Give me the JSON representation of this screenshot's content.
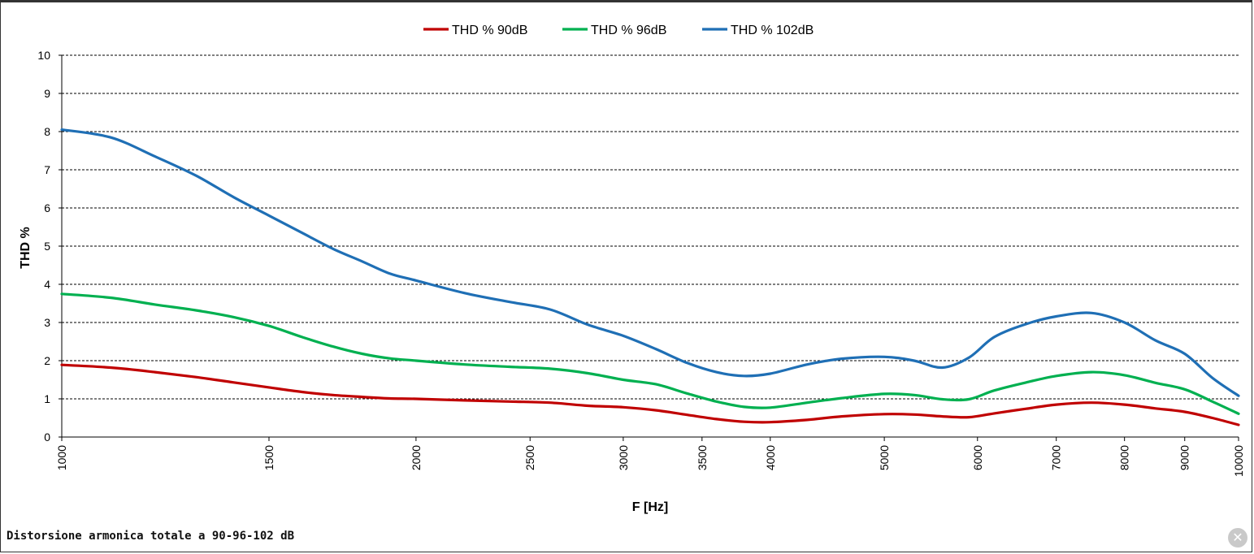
{
  "chart_data": {
    "type": "line",
    "xscale": "log",
    "xlim": [
      1000,
      10000
    ],
    "ylim": [
      0,
      10
    ],
    "yticks": [
      "0",
      "1",
      "2",
      "3",
      "4",
      "5",
      "6",
      "7",
      "8",
      "9",
      "10"
    ],
    "xticks": [
      "1000",
      "1500",
      "2000",
      "2500",
      "3000",
      "3500",
      "4000",
      "5000",
      "6000",
      "7000",
      "8000",
      "9000",
      "10000"
    ],
    "xlabel": "F [Hz]",
    "ylabel": "THD %",
    "grid": "horizontal dashed",
    "legend": "top-center",
    "series": [
      {
        "name": "THD % 90dB",
        "color": "#c00000",
        "points": [
          [
            1000,
            1.89
          ],
          [
            1100,
            1.82
          ],
          [
            1200,
            1.7
          ],
          [
            1300,
            1.57
          ],
          [
            1400,
            1.43
          ],
          [
            1500,
            1.3
          ],
          [
            1600,
            1.18
          ],
          [
            1700,
            1.1
          ],
          [
            1800,
            1.05
          ],
          [
            1900,
            1.01
          ],
          [
            2000,
            1.0
          ],
          [
            2200,
            0.96
          ],
          [
            2400,
            0.93
          ],
          [
            2600,
            0.9
          ],
          [
            2800,
            0.82
          ],
          [
            3000,
            0.78
          ],
          [
            3200,
            0.7
          ],
          [
            3400,
            0.58
          ],
          [
            3600,
            0.47
          ],
          [
            3800,
            0.4
          ],
          [
            4000,
            0.39
          ],
          [
            4300,
            0.45
          ],
          [
            4600,
            0.54
          ],
          [
            5000,
            0.6
          ],
          [
            5300,
            0.59
          ],
          [
            5600,
            0.54
          ],
          [
            5900,
            0.52
          ],
          [
            6200,
            0.62
          ],
          [
            6600,
            0.74
          ],
          [
            7000,
            0.85
          ],
          [
            7500,
            0.9
          ],
          [
            8000,
            0.85
          ],
          [
            8500,
            0.75
          ],
          [
            9000,
            0.66
          ],
          [
            9500,
            0.5
          ],
          [
            10000,
            0.32
          ]
        ]
      },
      {
        "name": "THD % 96dB",
        "color": "#00b050",
        "points": [
          [
            1000,
            3.75
          ],
          [
            1100,
            3.65
          ],
          [
            1200,
            3.47
          ],
          [
            1300,
            3.32
          ],
          [
            1400,
            3.14
          ],
          [
            1500,
            2.91
          ],
          [
            1600,
            2.62
          ],
          [
            1700,
            2.37
          ],
          [
            1800,
            2.18
          ],
          [
            1900,
            2.06
          ],
          [
            2000,
            2.0
          ],
          [
            2200,
            1.9
          ],
          [
            2400,
            1.84
          ],
          [
            2600,
            1.79
          ],
          [
            2800,
            1.67
          ],
          [
            3000,
            1.5
          ],
          [
            3200,
            1.38
          ],
          [
            3400,
            1.14
          ],
          [
            3600,
            0.93
          ],
          [
            3800,
            0.79
          ],
          [
            4000,
            0.77
          ],
          [
            4300,
            0.9
          ],
          [
            4600,
            1.02
          ],
          [
            5000,
            1.13
          ],
          [
            5300,
            1.1
          ],
          [
            5600,
            0.99
          ],
          [
            5900,
            0.99
          ],
          [
            6200,
            1.22
          ],
          [
            6600,
            1.43
          ],
          [
            7000,
            1.6
          ],
          [
            7500,
            1.7
          ],
          [
            8000,
            1.62
          ],
          [
            8500,
            1.42
          ],
          [
            9000,
            1.25
          ],
          [
            9500,
            0.93
          ],
          [
            10000,
            0.61
          ]
        ]
      },
      {
        "name": "THD % 102dB",
        "color": "#1f6fb5",
        "points": [
          [
            1000,
            8.05
          ],
          [
            1100,
            7.85
          ],
          [
            1200,
            7.35
          ],
          [
            1300,
            6.85
          ],
          [
            1400,
            6.28
          ],
          [
            1500,
            5.8
          ],
          [
            1600,
            5.35
          ],
          [
            1700,
            4.93
          ],
          [
            1800,
            4.6
          ],
          [
            1900,
            4.28
          ],
          [
            2000,
            4.1
          ],
          [
            2200,
            3.77
          ],
          [
            2400,
            3.54
          ],
          [
            2600,
            3.34
          ],
          [
            2800,
            2.94
          ],
          [
            3000,
            2.65
          ],
          [
            3200,
            2.3
          ],
          [
            3400,
            1.94
          ],
          [
            3600,
            1.7
          ],
          [
            3800,
            1.6
          ],
          [
            4000,
            1.66
          ],
          [
            4300,
            1.9
          ],
          [
            4600,
            2.05
          ],
          [
            5000,
            2.1
          ],
          [
            5300,
            2.0
          ],
          [
            5600,
            1.82
          ],
          [
            5900,
            2.08
          ],
          [
            6200,
            2.62
          ],
          [
            6600,
            2.96
          ],
          [
            7000,
            3.16
          ],
          [
            7500,
            3.25
          ],
          [
            8000,
            3.0
          ],
          [
            8500,
            2.53
          ],
          [
            9000,
            2.18
          ],
          [
            9500,
            1.55
          ],
          [
            10000,
            1.08
          ]
        ]
      }
    ]
  },
  "caption": "Distorsione armonica totale a 90-96-102 dB",
  "close_icon": "close-icon",
  "close_glyph": "✕"
}
